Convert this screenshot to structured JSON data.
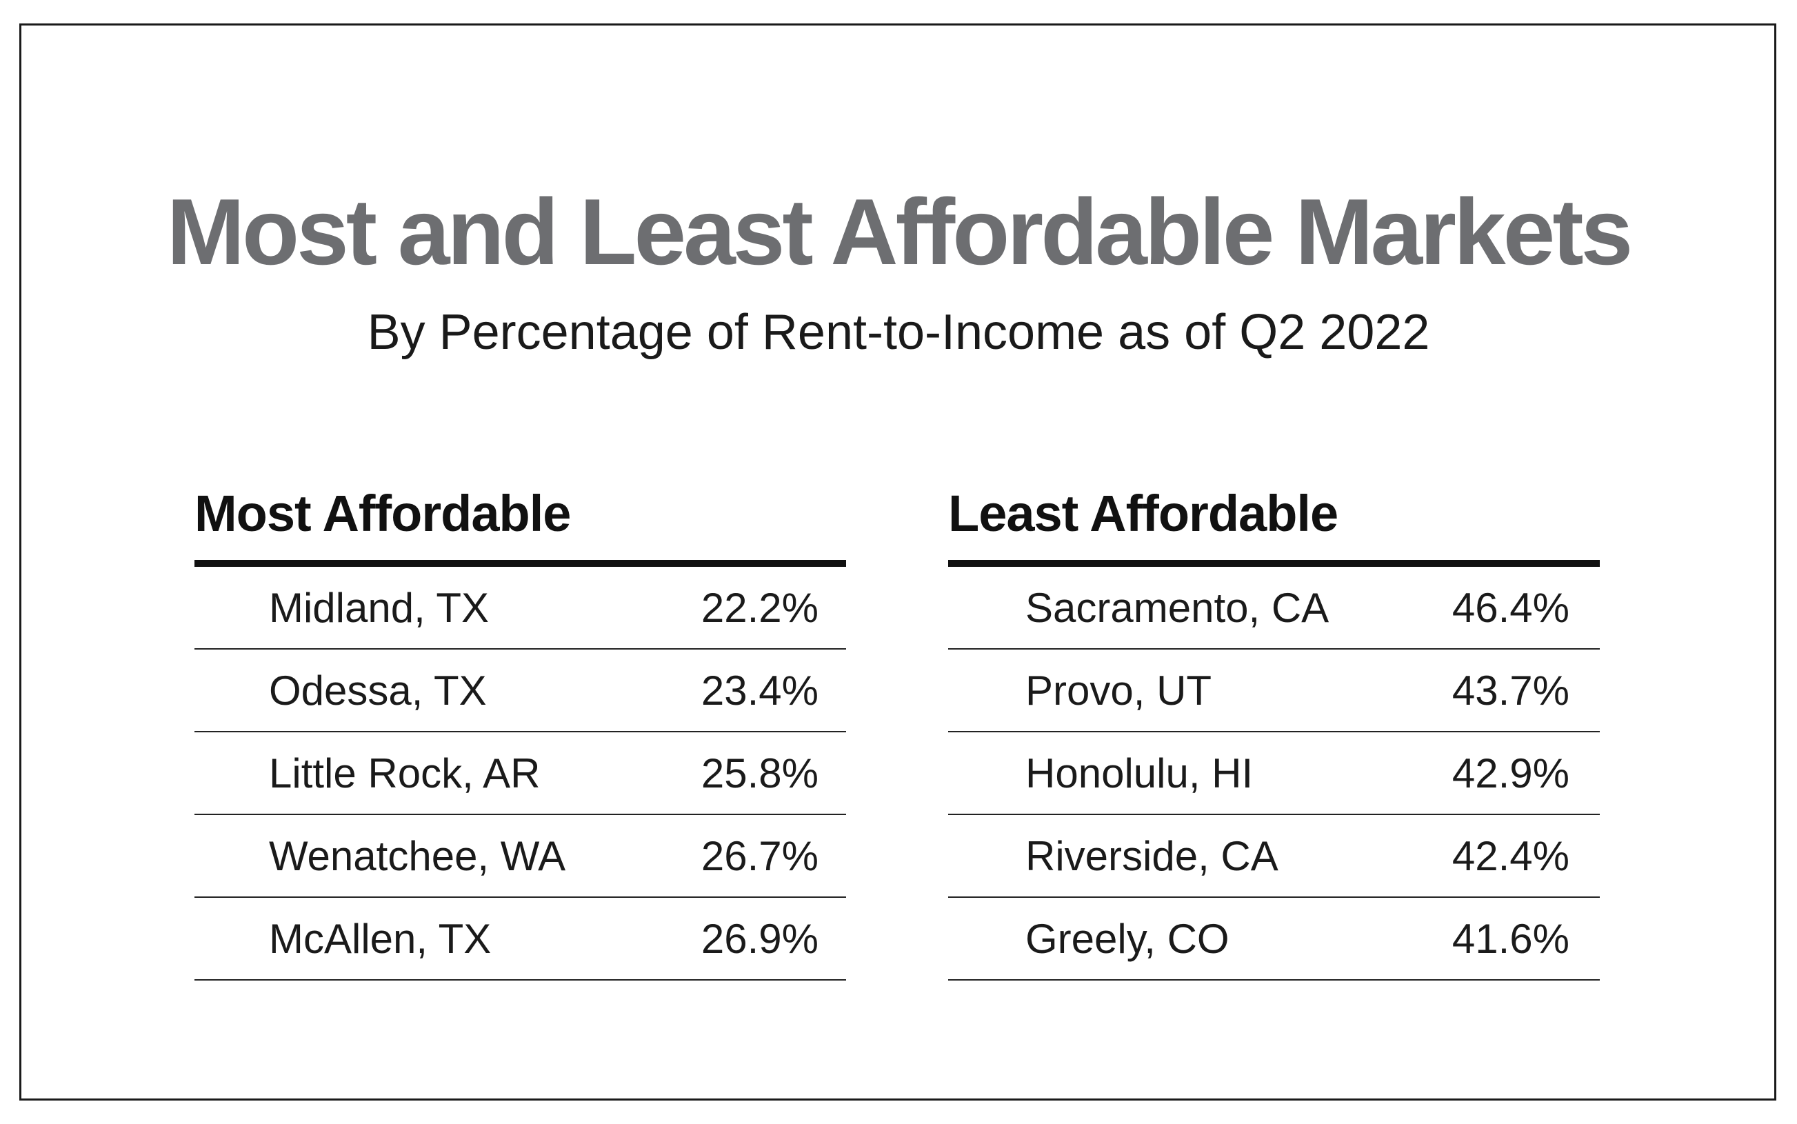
{
  "chart_data": {
    "type": "table",
    "title": "Most and Least Affordable Markets",
    "subtitle": "By Percentage of Rent-to-Income as of Q2 2022",
    "tables": [
      {
        "heading": "Most Affordable",
        "rows": [
          {
            "city": "Midland, TX",
            "value": "22.2%"
          },
          {
            "city": "Odessa, TX",
            "value": "23.4%"
          },
          {
            "city": "Little Rock, AR",
            "value": "25.8%"
          },
          {
            "city": "Wenatchee, WA",
            "value": "26.7%"
          },
          {
            "city": "McAllen, TX",
            "value": "26.9%"
          }
        ]
      },
      {
        "heading": "Least Affordable",
        "rows": [
          {
            "city": "Sacramento, CA",
            "value": "46.4%"
          },
          {
            "city": "Provo, UT",
            "value": "43.7%"
          },
          {
            "city": "Honolulu, HI",
            "value": "42.9%"
          },
          {
            "city": "Riverside, CA",
            "value": "42.4%"
          },
          {
            "city": "Greely, CO",
            "value": "41.6%"
          }
        ]
      }
    ]
  },
  "colors": {
    "title": "#6d6e71",
    "text": "#1a1a1a",
    "rule": "#111111",
    "background": "#ffffff"
  }
}
